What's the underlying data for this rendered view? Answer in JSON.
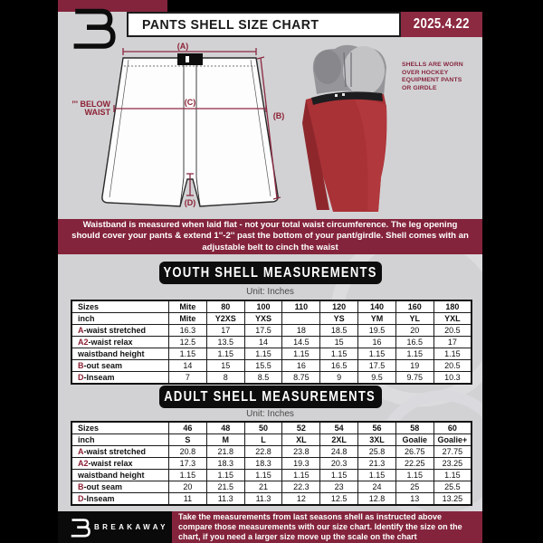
{
  "header": {
    "title": "PANTS SHELL SIZE CHART",
    "date": "2025.4.22"
  },
  "diagram": {
    "label_a": "(A)",
    "label_b": "(B)",
    "label_c": "(C)",
    "label_d": "(D)",
    "below_waist_line1": "7'' BELOW",
    "below_waist_line2": "WAIST"
  },
  "photo_note": {
    "lines": [
      "SHELLS ARE WORN",
      "OVER HOCKEY",
      "EQUIPMENT PANTS",
      "OR GIRDLE"
    ]
  },
  "notice": "Waistband is measured when laid flat - not your total waist circumference. The leg opening should cover your pants & extend 1''-2'' past the bottom of your pant/girdle. Shell comes with an adjustable belt to cinch the waist",
  "youth": {
    "title": "YOUTH SHELL MEASUREMENTS",
    "unit": "Unit: Inches",
    "rows": [
      {
        "prefix": "",
        "label": "Sizes",
        "header": true,
        "cells": [
          "Mite",
          "80",
          "100",
          "110",
          "120",
          "140",
          "160",
          "180"
        ]
      },
      {
        "prefix": "",
        "label": "inch",
        "header": true,
        "cells": [
          "Mite",
          "Y2XS",
          "YXS",
          "",
          "YS",
          "YM",
          "YL",
          "YXL"
        ]
      },
      {
        "prefix": "A",
        "label": "-waist stretched",
        "header": false,
        "cells": [
          "16.3",
          "17",
          "17.5",
          "18",
          "18.5",
          "19.5",
          "20",
          "20.5"
        ]
      },
      {
        "prefix": "A2",
        "label": "-waist relax",
        "header": false,
        "cells": [
          "12.5",
          "13.5",
          "14",
          "14.5",
          "15",
          "16",
          "16.5",
          "17"
        ]
      },
      {
        "prefix": "",
        "label": "waistband height",
        "header": false,
        "cells": [
          "1.15",
          "1.15",
          "1.15",
          "1.15",
          "1.15",
          "1.15",
          "1.15",
          "1.15"
        ]
      },
      {
        "prefix": "B",
        "label": "-out seam",
        "header": false,
        "cells": [
          "14",
          "15",
          "15.5",
          "16",
          "16.5",
          "17.5",
          "19",
          "20.5"
        ]
      },
      {
        "prefix": "D",
        "label": "-Inseam",
        "header": false,
        "cells": [
          "7",
          "8",
          "8.5",
          "8.75",
          "9",
          "9.5",
          "9.75",
          "10.3"
        ]
      }
    ]
  },
  "adult": {
    "title": "ADULT SHELL MEASUREMENTS",
    "unit": "Unit: Inches",
    "rows": [
      {
        "prefix": "",
        "label": "Sizes",
        "header": true,
        "cells": [
          "46",
          "48",
          "50",
          "52",
          "54",
          "56",
          "58",
          "60"
        ]
      },
      {
        "prefix": "",
        "label": "inch",
        "header": true,
        "cells": [
          "S",
          "M",
          "L",
          "XL",
          "2XL",
          "3XL",
          "Goalie",
          "Goalie+"
        ]
      },
      {
        "prefix": "A",
        "label": "-waist stretched",
        "header": false,
        "cells": [
          "20.8",
          "21.8",
          "22.8",
          "23.8",
          "24.8",
          "25.8",
          "26.75",
          "27.75"
        ]
      },
      {
        "prefix": "A2",
        "label": "-waist relax",
        "header": false,
        "cells": [
          "17.3",
          "18.3",
          "18.3",
          "19.3",
          "20.3",
          "21.3",
          "22.25",
          "23.25"
        ]
      },
      {
        "prefix": "",
        "label": "waistband height",
        "header": false,
        "cells": [
          "1.15",
          "1.15",
          "1.15",
          "1.15",
          "1.15",
          "1.15",
          "1.15",
          "1.15"
        ]
      },
      {
        "prefix": "B",
        "label": "-out seam",
        "header": false,
        "cells": [
          "20",
          "21.5",
          "21",
          "22.3",
          "23",
          "24",
          "25",
          "25.5"
        ]
      },
      {
        "prefix": "D",
        "label": "-Inseam",
        "header": false,
        "cells": [
          "11",
          "11.3",
          "11.3",
          "12",
          "12.5",
          "12.8",
          "13",
          "13.25"
        ]
      }
    ]
  },
  "footer": {
    "brand": "BREAKAWAY",
    "text": "Take the measurements from last seasons shell as instructed above compare those measurements  with our size chart. Identify the size on the chart, if you need a larger size move up the scale on the chart"
  },
  "colors": {
    "maroon": "#84243c",
    "shell_red": "#a93237",
    "page_grey": "#d2d2d4"
  }
}
